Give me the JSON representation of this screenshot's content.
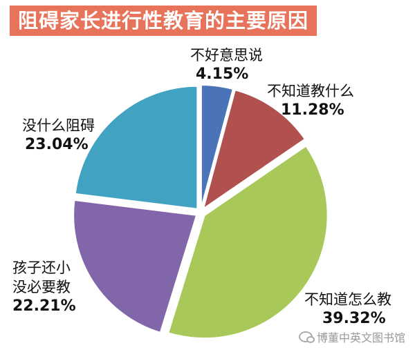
{
  "chart_data": {
    "type": "pie",
    "title": "阻碍家长进行性教育的主要原因",
    "slices": [
      {
        "label": "不好意思说",
        "pct_text": "4.15%",
        "value": 4.15,
        "color": "#4a73b8"
      },
      {
        "label": "不知道教什么",
        "pct_text": "11.28%",
        "value": 11.28,
        "color": "#b0504f"
      },
      {
        "label": "不知道怎么教",
        "pct_text": "39.32%",
        "value": 39.32,
        "color": "#a8c85a"
      },
      {
        "label_lines": [
          "孩子还小",
          "没必要教"
        ],
        "pct_text": "22.21%",
        "value": 22.21,
        "color": "#8266aa"
      },
      {
        "label": "没什么阻碍",
        "pct_text": "23.04%",
        "value": 23.04,
        "color": "#41a2c1"
      }
    ]
  },
  "watermark": {
    "text": "博董中英文图书馆",
    "icon": "wechat-icon"
  }
}
